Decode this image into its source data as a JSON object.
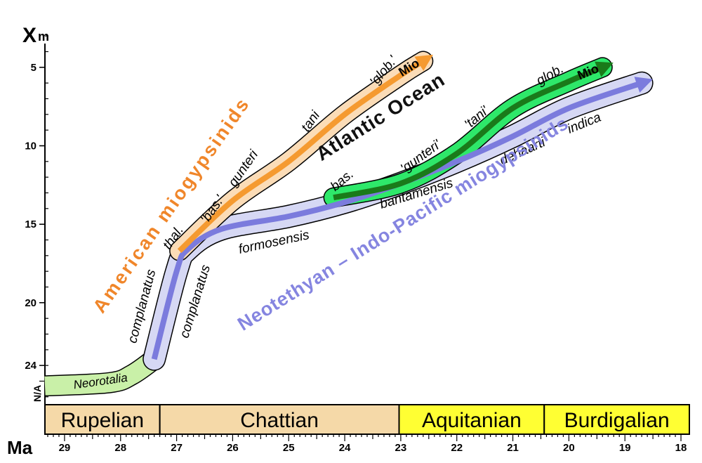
{
  "chart_data": {
    "type": "line",
    "y_axis_title": "X",
    "y_axis_title_sub": "m",
    "x_axis_title": "Ma",
    "x_ticks": [
      29,
      28,
      27,
      26,
      25,
      24,
      23,
      22,
      21,
      20,
      19,
      18
    ],
    "x_range": [
      29.35,
      17.85
    ],
    "y_ticks": [
      "5",
      "10",
      "15",
      "20",
      "24"
    ],
    "y_tick_values": [
      5,
      10,
      15,
      20,
      24
    ],
    "y_extra_label": "N/A",
    "y_range": [
      2.5,
      26.5
    ],
    "stages": [
      {
        "name": "Rupelian",
        "from": 29.35,
        "to": 27.3,
        "color": "#f5d9a8"
      },
      {
        "name": "Chattian",
        "from": 27.3,
        "to": 23.03,
        "color": "#f5d9a8"
      },
      {
        "name": "Aquitanian",
        "from": 23.03,
        "to": 20.44,
        "color": "#ffff33"
      },
      {
        "name": "Burdigalian",
        "from": 20.44,
        "to": 17.85,
        "color": "#ffff33"
      }
    ],
    "series": [
      {
        "name": "Neorotalia",
        "color": "#c9f0a8",
        "points": [
          [
            29.35,
            25.3
          ],
          [
            28.2,
            25.1
          ],
          [
            27.8,
            24.6
          ],
          [
            27.4,
            23.6
          ]
        ]
      },
      {
        "name": "Neotethyan – Indo-Pacific miogypsinids",
        "color": "#7b7bdd",
        "band_color": "#d6d8f4",
        "points": [
          [
            27.4,
            23.6
          ],
          [
            27.0,
            18.0
          ],
          [
            26.8,
            16.6
          ],
          [
            26.2,
            15.3
          ],
          [
            25.0,
            14.5
          ],
          [
            24.0,
            13.6
          ],
          [
            23.0,
            12.4
          ],
          [
            22.0,
            11.0
          ],
          [
            21.0,
            9.4
          ],
          [
            20.0,
            7.6
          ],
          [
            18.7,
            6.0
          ]
        ],
        "labels": [
          {
            "text": "complanatus",
            "x": 27.55,
            "y": 20.3,
            "angle": -75
          },
          {
            "text": "complanatus",
            "x": 26.6,
            "y": 20.0,
            "angle": -73
          },
          {
            "text": "formosensis",
            "x": 25.25,
            "y": 16.4,
            "angle": -12
          },
          {
            "text": "bantamensis",
            "x": 22.7,
            "y": 13.3,
            "angle": -17
          },
          {
            "text": "dehaarti",
            "x": 20.8,
            "y": 10.6,
            "angle": -24
          },
          {
            "text": "indica",
            "x": 19.7,
            "y": 8.8,
            "angle": -22
          }
        ]
      },
      {
        "name": "American miogypsinids",
        "color": "#f59a30",
        "band_color": "#fbdcb7",
        "end_label": "Mio",
        "points": [
          [
            26.95,
            16.7
          ],
          [
            26.0,
            13.5
          ],
          [
            25.0,
            11.0
          ],
          [
            24.0,
            8.0
          ],
          [
            23.0,
            5.5
          ],
          [
            22.6,
            4.6
          ]
        ],
        "labels": [
          {
            "text": "thal.",
            "x": 27.0,
            "y": 16.0,
            "angle": -55
          },
          {
            "text": "'bas.'",
            "x": 26.3,
            "y": 14.2,
            "angle": -55
          },
          {
            "text": "gunteri",
            "x": 25.75,
            "y": 11.6,
            "angle": -55
          },
          {
            "text": "tani",
            "x": 24.55,
            "y": 8.6,
            "angle": -55
          },
          {
            "text": "'glob.'",
            "x": 23.25,
            "y": 5.4,
            "angle": -50
          }
        ]
      },
      {
        "name": "Atlantic Ocean",
        "color": "#1a7a1a",
        "band_color": "#2ee86a",
        "end_label": "Mio",
        "points": [
          [
            24.2,
            13.3
          ],
          [
            23.0,
            12.4
          ],
          [
            22.0,
            10.5
          ],
          [
            21.0,
            7.6
          ],
          [
            20.0,
            5.9
          ],
          [
            19.4,
            5.0
          ]
        ],
        "labels": [
          {
            "text": "bas.",
            "x": 24.0,
            "y": 12.4,
            "angle": -40
          },
          {
            "text": "'gunteri'",
            "x": 22.6,
            "y": 10.9,
            "angle": -36
          },
          {
            "text": "'tani'",
            "x": 21.6,
            "y": 8.4,
            "angle": -40
          },
          {
            "text": "glob.",
            "x": 20.3,
            "y": 5.7,
            "angle": -30
          }
        ]
      }
    ],
    "big_labels": [
      {
        "text": "American miogypsinids",
        "x": 27.0,
        "y": 14.0,
        "angle": -55,
        "color": "#f0862a"
      },
      {
        "text": "Atlantic Ocean",
        "x": 23.3,
        "y": 8.5,
        "angle": -32,
        "color": "#111111"
      },
      {
        "text": "Neotethyan – Indo-Pacific miogypsinids",
        "x": 22.9,
        "y": 15.3,
        "angle": -32,
        "color": "#8585e0"
      }
    ]
  }
}
